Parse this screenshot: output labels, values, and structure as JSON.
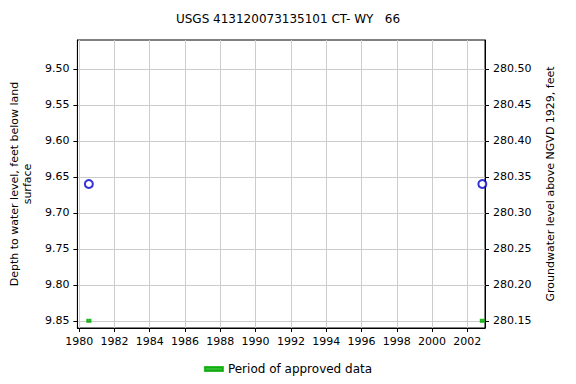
{
  "chart_data": {
    "type": "scatter",
    "title": "USGS 413120073135101 CT- WY   66",
    "y_label": "Depth to water level, feet below land\nsurface",
    "y2_label": "Groundwater level above NGVD 1929, feet",
    "x": [
      1980.55,
      2002.85
    ],
    "series": [
      {
        "values": [
          9.66,
          9.66
        ],
        "color": "#0000cc",
        "marker": "open_circle"
      },
      {
        "name": "Period of approved data",
        "values": [
          9.85,
          9.85
        ],
        "color": "#00aa00",
        "marker": "square"
      }
    ],
    "xlim": [
      1979.9,
      2003.0
    ],
    "xticks": [
      1980,
      1982,
      1984,
      1986,
      1988,
      1990,
      1992,
      1994,
      1996,
      1998,
      2000,
      2002
    ],
    "ylim": [
      9.86,
      9.46
    ],
    "yticks": [
      {
        "value": 9.5,
        "label": "9.50"
      },
      {
        "value": 9.55,
        "label": "9.55"
      },
      {
        "value": 9.6,
        "label": "9.60"
      },
      {
        "value": 9.65,
        "label": "9.65"
      },
      {
        "value": 9.7,
        "label": "9.70"
      },
      {
        "value": 9.75,
        "label": "9.75"
      },
      {
        "value": 9.8,
        "label": "9.80"
      },
      {
        "value": 9.85,
        "label": "9.85"
      }
    ],
    "y2lim": [
      280.14,
      280.54
    ],
    "y2ticks": [
      {
        "value": 280.15,
        "label": "280.15"
      },
      {
        "value": 280.2,
        "label": "280.20"
      },
      {
        "value": 280.25,
        "label": "280.25"
      },
      {
        "value": 280.3,
        "label": "280.30"
      },
      {
        "value": 280.35,
        "label": "280.35"
      },
      {
        "value": 280.4,
        "label": "280.40"
      },
      {
        "value": 280.45,
        "label": "280.45"
      },
      {
        "value": 280.5,
        "label": "280.50"
      }
    ],
    "grid": true,
    "legend": "bottom"
  }
}
